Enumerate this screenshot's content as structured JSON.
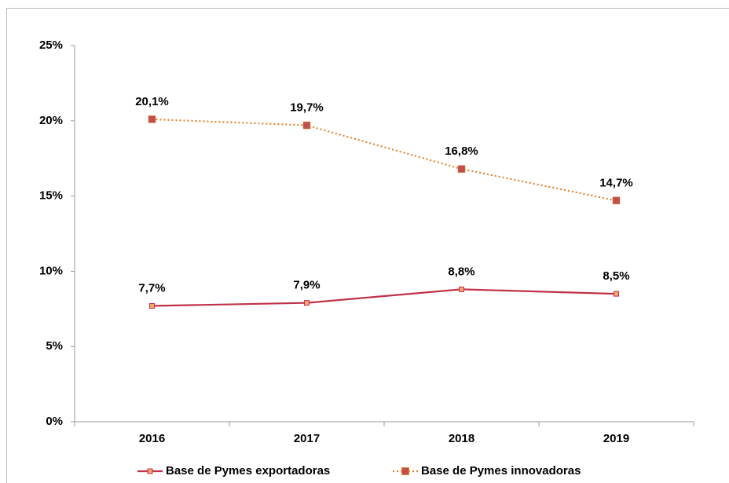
{
  "chart_data": {
    "type": "line",
    "categories": [
      "2016",
      "2017",
      "2018",
      "2019"
    ],
    "series": [
      {
        "name": "Base de Pymes exportadoras",
        "color": "#c0314a",
        "marker_color": "#f4a66a",
        "dash": "solid",
        "values": [
          7.7,
          7.9,
          8.8,
          8.5
        ],
        "value_labels": [
          "7,7%",
          "7,9%",
          "8,8%",
          "8,5%"
        ]
      },
      {
        "name": "Base de Pymes innovadoras",
        "color": "#e8822e",
        "marker_color": "#c0504d",
        "dash": "dotted",
        "values": [
          20.1,
          19.7,
          16.8,
          14.7
        ],
        "value_labels": [
          "20,1%",
          "19,7%",
          "16,8%",
          "14,7%"
        ]
      }
    ],
    "ylim": [
      0,
      25
    ],
    "yticks": [
      {
        "value": 0,
        "label": "0%"
      },
      {
        "value": 5,
        "label": "5%"
      },
      {
        "value": 10,
        "label": "10%"
      },
      {
        "value": 15,
        "label": "15%"
      },
      {
        "value": 20,
        "label": "20%"
      },
      {
        "value": 25,
        "label": "25%"
      }
    ],
    "grid": false,
    "legend": "bottom"
  }
}
